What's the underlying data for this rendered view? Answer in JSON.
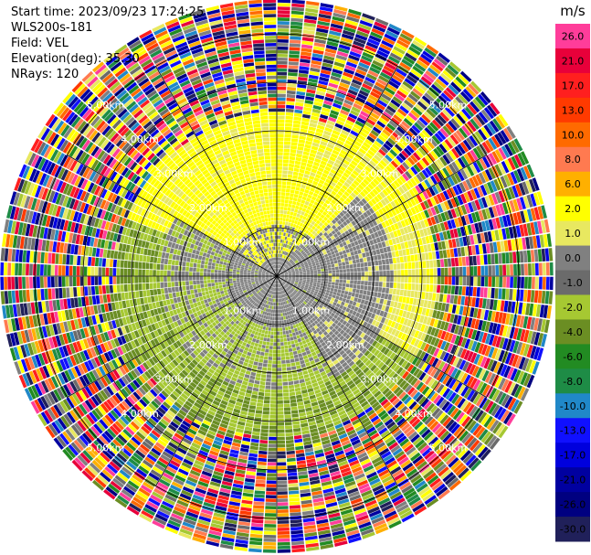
{
  "header": {
    "start_time": "Start time: 2023/09/23 17:24:25",
    "instrument": "WLS200s-181",
    "field": "Field: VEL",
    "elevation": "Elevation(deg): 35.30",
    "nrays": "NRays: 120"
  },
  "chart_data": {
    "type": "heatmap",
    "projection": "polar-ppi",
    "field": "VEL",
    "n_rays": 120,
    "elevation_deg": 35.3,
    "range_rings_km": [
      1,
      2,
      3,
      4,
      5
    ],
    "ring_labels": [
      "1.00km",
      "2.00km",
      "3.00km",
      "4.00km",
      "5.00km"
    ],
    "spokes_deg": [
      0,
      30,
      60,
      90,
      120,
      150,
      180,
      210,
      240,
      270,
      300,
      330
    ],
    "colorbar": {
      "unit": "m/s",
      "ticks": [
        "26.0",
        "21.0",
        "17.0",
        "13.0",
        "10.0",
        "8.0",
        "6.0",
        "2.0",
        "1.0",
        "0.0",
        "-1.0",
        "-2.0",
        "-4.0",
        "-6.0",
        "-8.0",
        "-10.0",
        "-13.0",
        "-17.0",
        "-21.0",
        "-26.0",
        "-30.0"
      ],
      "colors": [
        "#ff3d9a",
        "#e8003a",
        "#ff1f1f",
        "#ff3a00",
        "#ff6a00",
        "#ff7a50",
        "#ffb000",
        "#ffff00",
        "#e8e860",
        "#808080",
        "#6b6b6b",
        "#a6c832",
        "#6b8e23",
        "#228b22",
        "#1e8c46",
        "#2088c8",
        "#1010ff",
        "#0000dd",
        "#0000a0",
        "#000080",
        "#20205a"
      ]
    },
    "regions": [
      {
        "from_km": 0.0,
        "to_km": 1.0,
        "pattern": "grey core with patches of -2.0 and 2.0"
      },
      {
        "from_km": 1.0,
        "to_km": 2.5,
        "pattern": "yellow 2.0 north half, grey 0.0 east, olive -2.0 south-west"
      },
      {
        "from_km": 2.5,
        "to_km": 3.2,
        "pattern": "yellow 1.0 north, olive -2.0 / -4.0 south"
      },
      {
        "from_km": 3.2,
        "to_km": 5.7,
        "pattern": "noise, all colors"
      }
    ]
  }
}
